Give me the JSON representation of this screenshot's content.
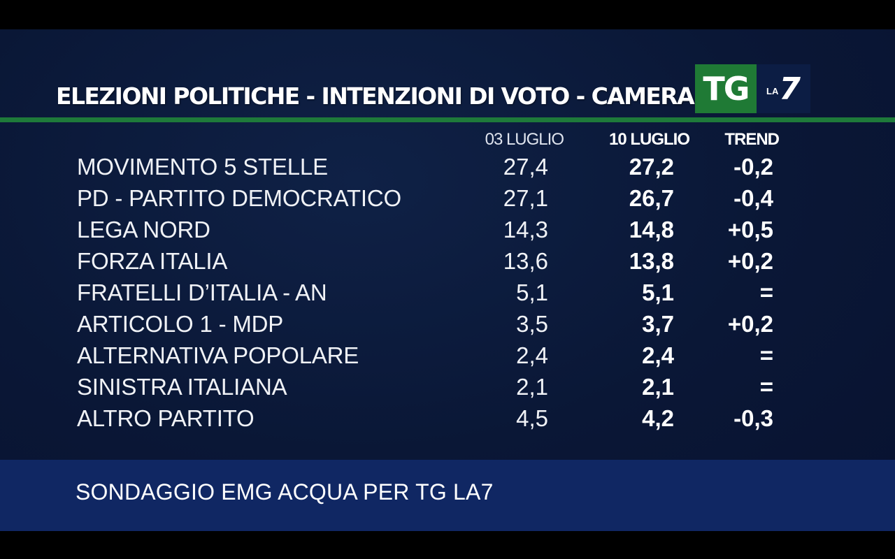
{
  "title": "ELEZIONI POLITICHE - INTENZIONI DI VOTO - CAMERA",
  "logo": {
    "tg": "TG",
    "la": "LA",
    "seven": "7",
    "tg_color": "#1f7a35",
    "la7_color": "#0c1d44"
  },
  "columns": {
    "previous": "03 LUGLIO",
    "current": "10 LUGLIO",
    "trend": "TREND"
  },
  "rows": [
    {
      "party": "MOVIMENTO 5 STELLE",
      "previous": "27,4",
      "current": "27,2",
      "trend": "-0,2"
    },
    {
      "party": "PD - PARTITO DEMOCRATICO",
      "previous": "27,1",
      "current": "26,7",
      "trend": "-0,4"
    },
    {
      "party": "LEGA NORD",
      "previous": "14,3",
      "current": "14,8",
      "trend": "+0,5"
    },
    {
      "party": "FORZA ITALIA",
      "previous": "13,6",
      "current": "13,8",
      "trend": "+0,2"
    },
    {
      "party": "FRATELLI D’ITALIA - AN",
      "previous": "5,1",
      "current": "5,1",
      "trend": "="
    },
    {
      "party": "ARTICOLO 1 - MDP",
      "previous": "3,5",
      "current": "3,7",
      "trend": "+0,2"
    },
    {
      "party": "ALTERNATIVA POPOLARE",
      "previous": "2,4",
      "current": "2,4",
      "trend": "="
    },
    {
      "party": "SINISTRA ITALIANA",
      "previous": "2,1",
      "current": "2,1",
      "trend": "="
    },
    {
      "party": "ALTRO PARTITO",
      "previous": "4,5",
      "current": "4,2",
      "trend": "-0,3"
    }
  ],
  "source": "SONDAGGIO EMG ACQUA PER TG LA7",
  "colors": {
    "background": "#0a1736",
    "accent_line": "#1e7a3a",
    "source_band": "#102763"
  }
}
